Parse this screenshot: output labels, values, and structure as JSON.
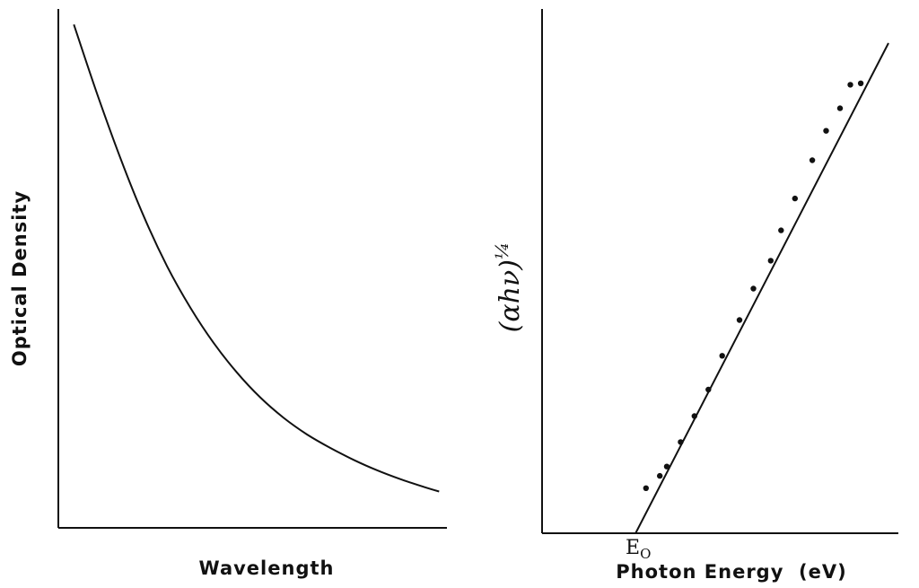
{
  "chart_data": [
    {
      "type": "line",
      "xlabel": "Wavelength",
      "ylabel": "Optical Density",
      "xlim": [
        0,
        100
      ],
      "ylim": [
        0,
        100
      ],
      "grid": false,
      "x": [
        4,
        10,
        16,
        22,
        28,
        34,
        40,
        46,
        52,
        58,
        64,
        70,
        76,
        82,
        88,
        94,
        98
      ],
      "y": [
        97,
        83.6,
        71.2,
        60,
        50.4,
        42.4,
        35.6,
        29.9,
        25.1,
        21.2,
        18,
        15.4,
        13.1,
        11.1,
        9.4,
        7.9,
        7
      ]
    },
    {
      "type": "scatter",
      "xlabel": "Photon Energy  (eV)",
      "ylabel": "(αhν)",
      "ylabel_superscript": "¼",
      "tick_label": "E",
      "tick_label_subscript": "O",
      "xlim": [
        0,
        100
      ],
      "ylim": [
        0,
        100
      ],
      "grid": false,
      "fit_line": {
        "x": [
          27,
          100
        ],
        "y": [
          0,
          100
        ]
      },
      "points": [
        [
          30,
          9.2
        ],
        [
          34,
          11.7
        ],
        [
          36,
          13.6
        ],
        [
          40,
          18.6
        ],
        [
          44,
          23.9
        ],
        [
          48,
          29.3
        ],
        [
          52,
          36.2
        ],
        [
          57,
          43.5
        ],
        [
          61,
          49.9
        ],
        [
          66,
          55.6
        ],
        [
          69,
          61.8
        ],
        [
          73,
          68.3
        ],
        [
          78,
          76.1
        ],
        [
          82,
          82.1
        ],
        [
          86,
          86.7
        ],
        [
          89,
          91.5
        ],
        [
          92,
          91.8
        ]
      ]
    }
  ]
}
